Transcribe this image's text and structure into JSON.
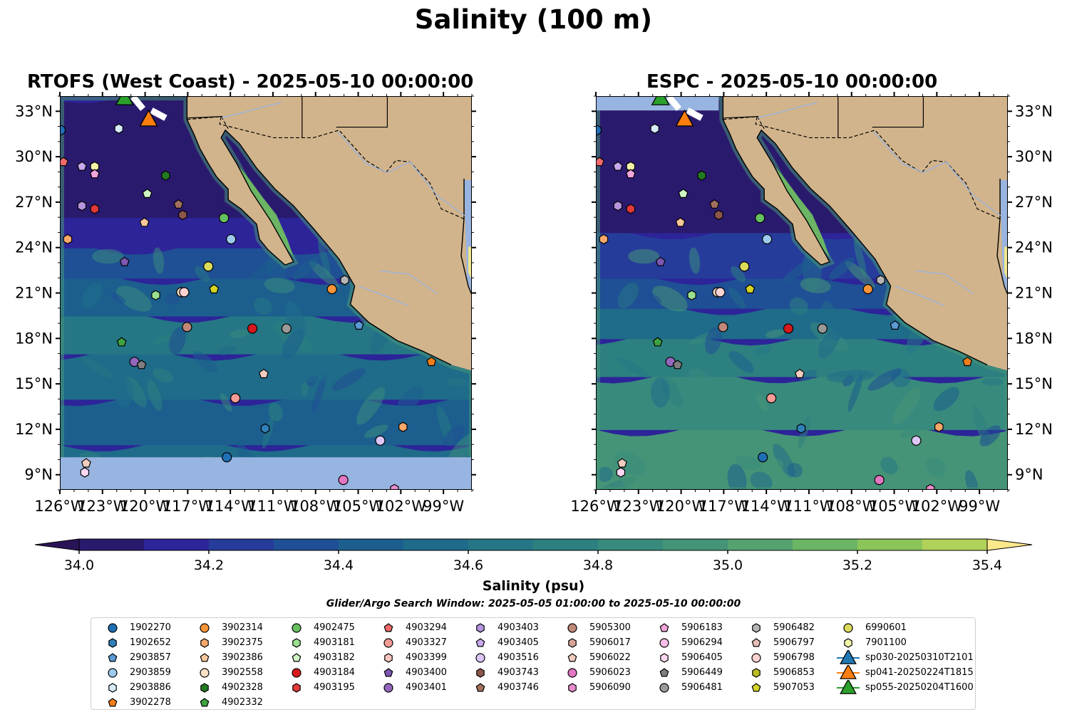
{
  "figure": {
    "suptitle": "Salinity (100 m)",
    "left_title": "RTOFS (West Coast) - 2025-05-10 00:00:00",
    "right_title": "ESPC - 2025-05-10 00:00:00",
    "colors": {
      "land": "#d2b48c",
      "nodata": "#98b4e0",
      "border": "#000000"
    }
  },
  "axes": {
    "lon_ticks": [
      "126°W",
      "123°W",
      "120°W",
      "117°W",
      "114°W",
      "111°W",
      "108°W",
      "105°W",
      "102°W",
      "99°W"
    ],
    "lat_ticks": [
      "33°N",
      "30°N",
      "27°N",
      "24°N",
      "21°N",
      "18°N",
      "15°N",
      "12°N",
      "9°N"
    ],
    "lon_range": [
      -126,
      -97
    ],
    "lat_range": [
      8,
      34
    ]
  },
  "colorbar": {
    "label": "Salinity (psu)",
    "ticks": [
      "34.0",
      "34.2",
      "34.4",
      "34.6",
      "34.8",
      "35.0",
      "35.2",
      "35.4"
    ],
    "levels": [
      34.0,
      34.1,
      34.2,
      34.3,
      34.4,
      34.5,
      34.6,
      34.7,
      34.8,
      34.9,
      35.0,
      35.1,
      35.2,
      35.3,
      35.4
    ],
    "colors": [
      "#2a1a6e",
      "#2d2499",
      "#263c9b",
      "#1f4f94",
      "#1c5f8e",
      "#1f6b8a",
      "#257785",
      "#2d8080",
      "#388a7d",
      "#459477",
      "#55a26f",
      "#6bb564",
      "#8bc55a",
      "#b1d25a",
      "#d8de6a"
    ],
    "under_color": "#2a1458",
    "over_color": "#fbe98a"
  },
  "search_window": "Glider/Argo Search Window: 2025-05-05 01:00:00 to 2025-05-10 00:00:00",
  "legend": [
    {
      "label": "1902270",
      "shape": "circle",
      "color": "#1f6fb4"
    },
    {
      "label": "1902652",
      "shape": "hexagon",
      "color": "#2f7fb8"
    },
    {
      "label": "2903857",
      "shape": "pentagon",
      "color": "#5b9bd5"
    },
    {
      "label": "2903859",
      "shape": "circle",
      "color": "#9ccbee"
    },
    {
      "label": "2903886",
      "shape": "hexagon",
      "color": "#d6ecfa"
    },
    {
      "label": "3902278",
      "shape": "pentagon",
      "color": "#f07d1b"
    },
    {
      "label": "3902314",
      "shape": "circle",
      "color": "#f59438"
    },
    {
      "label": "3902375",
      "shape": "hexagon",
      "color": "#f6a86a"
    },
    {
      "label": "3902386",
      "shape": "pentagon",
      "color": "#f9c79a"
    },
    {
      "label": "3902558",
      "shape": "circle",
      "color": "#fbe0c8"
    },
    {
      "label": "4902328",
      "shape": "hexagon",
      "color": "#237a23"
    },
    {
      "label": "4902332",
      "shape": "pentagon",
      "color": "#3ea23e"
    },
    {
      "label": "4902475",
      "shape": "circle",
      "color": "#67c05f"
    },
    {
      "label": "4903181",
      "shape": "hexagon",
      "color": "#9be08f"
    },
    {
      "label": "4903182",
      "shape": "pentagon",
      "color": "#cff5c4"
    },
    {
      "label": "4903184",
      "shape": "circle",
      "color": "#d7191c"
    },
    {
      "label": "4903195",
      "shape": "hexagon",
      "color": "#e03a3a"
    },
    {
      "label": "4903294",
      "shape": "pentagon",
      "color": "#f06a6a"
    },
    {
      "label": "4903327",
      "shape": "circle",
      "color": "#f59a94"
    },
    {
      "label": "4903399",
      "shape": "hexagon",
      "color": "#fbc5c0"
    },
    {
      "label": "4903400",
      "shape": "pentagon",
      "color": "#7d57b2"
    },
    {
      "label": "4903401",
      "shape": "circle",
      "color": "#9467bd"
    },
    {
      "label": "4903403",
      "shape": "hexagon",
      "color": "#b495de"
    },
    {
      "label": "4903405",
      "shape": "pentagon",
      "color": "#c7aaee"
    },
    {
      "label": "4903516",
      "shape": "circle",
      "color": "#dcc6f6"
    },
    {
      "label": "4903743",
      "shape": "hexagon",
      "color": "#8c564b"
    },
    {
      "label": "4903746",
      "shape": "pentagon",
      "color": "#a2705f"
    },
    {
      "label": "5905300",
      "shape": "circle",
      "color": "#c08878"
    },
    {
      "label": "5906017",
      "shape": "hexagon",
      "color": "#d9a598"
    },
    {
      "label": "5906022",
      "shape": "pentagon",
      "color": "#f1cdbf"
    },
    {
      "label": "5906023",
      "shape": "circle",
      "color": "#e377c2"
    },
    {
      "label": "5906090",
      "shape": "hexagon",
      "color": "#e98ccd"
    },
    {
      "label": "5906183",
      "shape": "pentagon",
      "color": "#f3a4dc"
    },
    {
      "label": "5906294",
      "shape": "circle",
      "color": "#f7bde6"
    },
    {
      "label": "5906405",
      "shape": "hexagon",
      "color": "#fbd8f0"
    },
    {
      "label": "5906449",
      "shape": "pentagon",
      "color": "#7f7f7f"
    },
    {
      "label": "5906481",
      "shape": "circle",
      "color": "#999999"
    },
    {
      "label": "5906482",
      "shape": "hexagon",
      "color": "#b5b5b5"
    },
    {
      "label": "5906797",
      "shape": "pentagon",
      "color": "#e7bdb7"
    },
    {
      "label": "5906798",
      "shape": "circle",
      "color": "#fcd2d2"
    },
    {
      "label": "5906853",
      "shape": "hexagon",
      "color": "#bcbd22"
    },
    {
      "label": "5907053",
      "shape": "pentagon",
      "color": "#d4d426"
    },
    {
      "label": "6990601",
      "shape": "circle",
      "color": "#dbdb5a"
    },
    {
      "label": "7901100",
      "shape": "hexagon",
      "color": "#f5f5a8"
    },
    {
      "label": "sp030-20250310T2101",
      "shape": "triangle",
      "color": "#1f77b4"
    },
    {
      "label": "sp041-20250224T1815",
      "shape": "triangle",
      "color": "#ff7f0e"
    },
    {
      "label": "sp055-20250204T1600",
      "shape": "triangle",
      "color": "#2ca02c"
    }
  ],
  "floats": [
    {
      "id": "1902270",
      "lon": -126,
      "lat": 31.8
    },
    {
      "id": "4903294",
      "lon": -125.8,
      "lat": 29.7
    },
    {
      "id": "4903405",
      "lon": -124.5,
      "lat": 29.4
    },
    {
      "id": "7901100",
      "lon": -123.6,
      "lat": 29.4
    },
    {
      "id": "5906183",
      "lon": -123.6,
      "lat": 28.9
    },
    {
      "id": "2903886",
      "lon": -121.9,
      "lat": 31.9
    },
    {
      "id": "4902328",
      "lon": -118.6,
      "lat": 28.8
    },
    {
      "id": "4903182",
      "lon": -119.9,
      "lat": 27.6
    },
    {
      "id": "4903746",
      "lon": -117.7,
      "lat": 26.9
    },
    {
      "id": "4903743",
      "lon": -117.4,
      "lat": 26.2
    },
    {
      "id": "4903403",
      "lon": -124.5,
      "lat": 26.8
    },
    {
      "id": "4903195",
      "lon": -123.6,
      "lat": 26.6
    },
    {
      "id": "3902386",
      "lon": -120.1,
      "lat": 25.7
    },
    {
      "id": "4902475",
      "lon": -114.5,
      "lat": 26.0
    },
    {
      "id": "2903859",
      "lon": -114.0,
      "lat": 24.6
    },
    {
      "id": "3902375",
      "lon": -125.5,
      "lat": 24.6
    },
    {
      "id": "4903400",
      "lon": -121.5,
      "lat": 23.1
    },
    {
      "id": "6990601",
      "lon": -115.6,
      "lat": 22.8
    },
    {
      "id": "5907053",
      "lon": -115.2,
      "lat": 21.3
    },
    {
      "id": "4903181",
      "lon": -119.3,
      "lat": 20.9
    },
    {
      "id": "3902558",
      "lon": -117.5,
      "lat": 21.1
    },
    {
      "id": "5906798",
      "lon": -117.3,
      "lat": 21.1
    },
    {
      "id": "5906482",
      "lon": -106.0,
      "lat": 21.9
    },
    {
      "id": "3902314",
      "lon": -106.9,
      "lat": 21.3
    },
    {
      "id": "2903857",
      "lon": -105.0,
      "lat": 18.9
    },
    {
      "id": "5905300",
      "lon": -117.1,
      "lat": 18.8
    },
    {
      "id": "4903184",
      "lon": -112.5,
      "lat": 18.7
    },
    {
      "id": "5906481",
      "lon": -110.1,
      "lat": 18.7
    },
    {
      "id": "4902332",
      "lon": -121.7,
      "lat": 17.8
    },
    {
      "id": "4903401",
      "lon": -120.8,
      "lat": 16.5
    },
    {
      "id": "5906449",
      "lon": -120.3,
      "lat": 16.3
    },
    {
      "id": "3902278",
      "lon": -99.9,
      "lat": 16.5
    },
    {
      "id": "5906022",
      "lon": -111.7,
      "lat": 15.7
    },
    {
      "id": "4903327",
      "lon": -113.7,
      "lat": 14.1
    },
    {
      "id": "1902652",
      "lon": -111.6,
      "lat": 12.1
    },
    {
      "id": "3902375",
      "lon": -101.9,
      "lat": 12.2
    },
    {
      "id": "4903516",
      "lon": -103.5,
      "lat": 11.3
    },
    {
      "id": "1902270",
      "lon": -114.3,
      "lat": 10.2
    },
    {
      "id": "5906022",
      "lon": -124.2,
      "lat": 9.8
    },
    {
      "id": "5906405",
      "lon": -124.3,
      "lat": 9.2
    },
    {
      "id": "5906023",
      "lon": -106.1,
      "lat": 8.7
    },
    {
      "id": "5906090",
      "lon": -102.5,
      "lat": 8.1
    }
  ],
  "gliders": [
    {
      "id": "sp055-20250204T1600",
      "lon": -121.5,
      "lat": 33.9
    },
    {
      "id": "sp041-20250224T1815",
      "lon": -119.8,
      "lat": 32.5
    }
  ]
}
